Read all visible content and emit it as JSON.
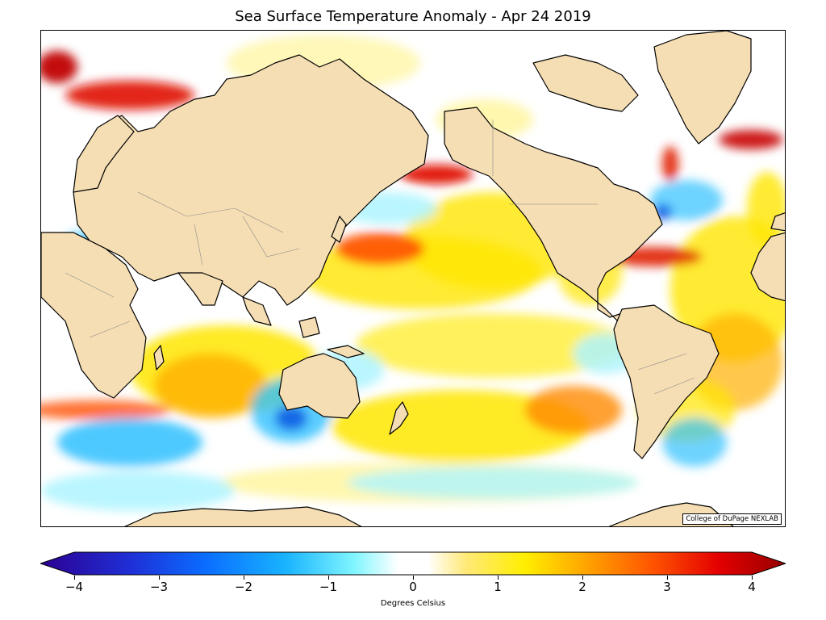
{
  "title": "Sea Surface Temperature Anomaly - Apr 24 2019",
  "credit": "College of DuPage NEXLAB",
  "colorbar": {
    "label": "Degrees Celsius",
    "ticks": [
      "−4",
      "−3",
      "−2",
      "−1",
      "0",
      "1",
      "2",
      "3",
      "4"
    ],
    "min": -4,
    "max": 4,
    "colors": [
      "#2c0091",
      "#1f2fd6",
      "#0a6cff",
      "#19b4ff",
      "#7ff5ff",
      "#ffffff",
      "#ffffff",
      "#ffe97a",
      "#ffee00",
      "#ffa600",
      "#ff5500",
      "#e40000",
      "#960000"
    ]
  },
  "map": {
    "land_color": "#f5deb3",
    "ocean_color": "#ffffff",
    "anomaly_colors": {
      "strong_warm": "#c80000",
      "warm": "#ff7a00",
      "mild_warm": "#ffe600",
      "slight_warm": "#fff59a",
      "slight_cool": "#aef5ff",
      "cool": "#30c0ff",
      "strong_cool": "#0a50e0"
    }
  }
}
